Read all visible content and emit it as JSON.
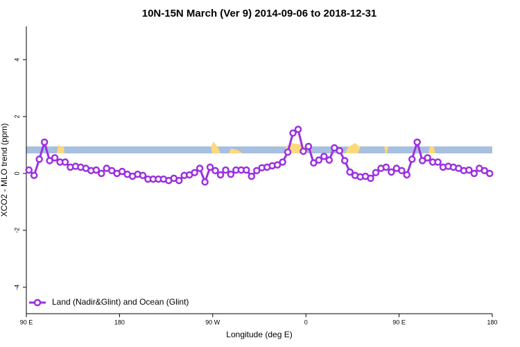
{
  "chart_data": {
    "type": "line",
    "title": "10N-15N March (Ver 9)   2014-09-06 to 2018-12-31",
    "x_label": "Longitude (deg E)",
    "y_label": "XCO2 - MLO trend (ppm)",
    "xlim": [
      90,
      540
    ],
    "xticks": [
      {
        "value": 90,
        "label": "90 E"
      },
      180,
      {
        "value": 270,
        "label": "90 W"
      },
      {
        "value": 360,
        "label": "0"
      },
      {
        "value": 450,
        "label": "90 E"
      },
      {
        "value": 540,
        "label": "180"
      }
    ],
    "ylim": [
      -4.93,
      5.17
    ],
    "yticks": [
      -4,
      -2,
      0,
      2,
      4
    ],
    "legend": "bottom-left",
    "x": [
      92.5,
      97.5,
      102.5,
      107.5,
      112.5,
      117.5,
      122.5,
      127.5,
      132.5,
      137.5,
      142.5,
      147.5,
      152.5,
      157.5,
      162.5,
      167.5,
      172.5,
      177.5,
      182.5,
      187.5,
      192.5,
      197.5,
      202.5,
      207.5,
      212.5,
      217.5,
      222.5,
      227.5,
      232.5,
      237.5,
      242.5,
      247.5,
      252.5,
      257.5,
      262.5,
      267.5,
      272.5,
      277.5,
      282.5,
      287.5,
      292.5,
      297.5,
      302.5,
      307.5,
      312.5,
      317.5,
      322.5,
      327.5,
      332.5,
      337.5,
      342.5,
      347.5,
      352.5,
      357.5,
      362.5,
      367.5,
      372.5,
      377.5,
      382.5,
      387.5,
      392.5,
      397.5,
      402.5,
      407.5,
      412.5,
      417.5,
      422.5,
      427.5,
      432.5,
      437.5,
      442.5,
      447.5,
      452.5,
      457.5,
      462.5,
      467.5,
      472.5,
      477.5,
      482.5,
      487.5,
      492.5,
      497.5,
      502.5,
      507.5,
      512.5,
      517.5,
      522.5,
      527.5,
      532.5,
      537.5
    ],
    "series": [
      {
        "name": "Land (Nadir&Glint) and Ocean (Glint)",
        "color": "#9b30e0",
        "values": [
          0.12,
          -0.07,
          0.5,
          1.1,
          0.45,
          0.55,
          0.4,
          0.4,
          0.22,
          0.25,
          0.22,
          0.18,
          0.1,
          0.12,
          0.0,
          0.18,
          0.1,
          0.0,
          0.07,
          -0.03,
          -0.1,
          -0.03,
          -0.07,
          -0.2,
          -0.2,
          -0.2,
          -0.2,
          -0.25,
          -0.17,
          -0.25,
          -0.07,
          -0.05,
          0.03,
          0.18,
          -0.3,
          0.22,
          0.1,
          -0.05,
          0.12,
          -0.03,
          0.12,
          0.12,
          0.12,
          -0.1,
          0.1,
          0.2,
          0.22,
          0.27,
          0.3,
          0.4,
          0.75,
          1.42,
          1.55,
          0.78,
          0.95,
          0.37,
          0.47,
          0.6,
          0.47,
          0.9,
          0.8,
          0.45,
          0.05,
          -0.07,
          -0.12,
          -0.1,
          -0.17,
          0.03,
          0.18,
          0.22,
          0.05,
          0.18,
          0.1,
          -0.05,
          0.5,
          1.1,
          0.45,
          0.55,
          0.4,
          0.4,
          0.22,
          0.25,
          0.22,
          0.18,
          0.1,
          0.12,
          0.0,
          0.18,
          0.1,
          0.0
        ]
      }
    ]
  }
}
